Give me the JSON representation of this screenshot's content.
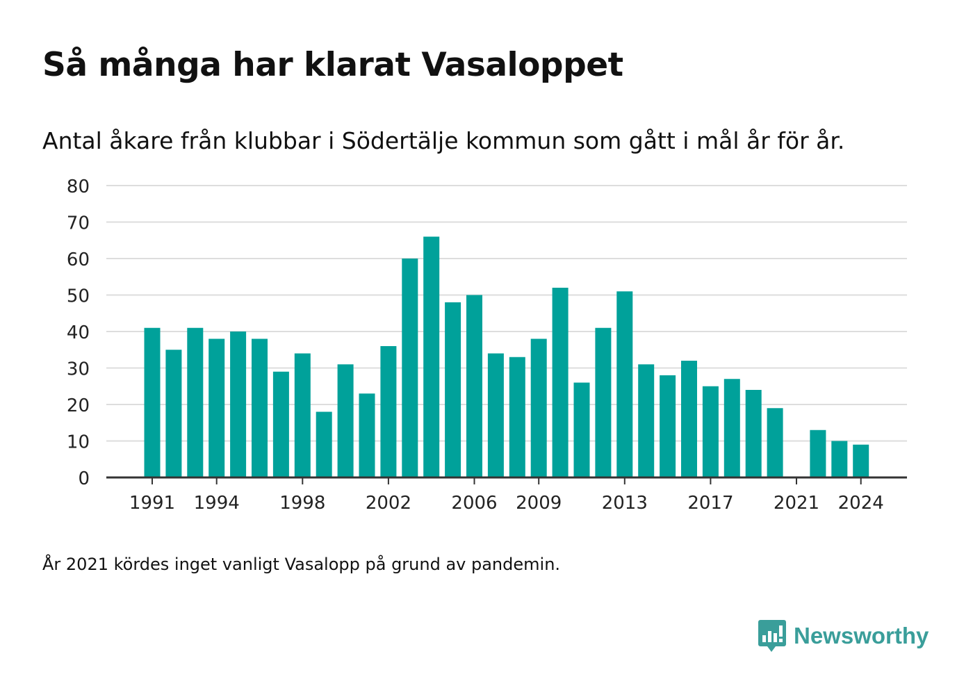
{
  "title": "Så många har klarat Vasaloppet",
  "subtitle": "Antal åkare från klubbar i Södertälje kommun som gått i mål år för år.",
  "note": "År 2021 kördes inget vanligt Vasalopp på grund av pandemin.",
  "brand": {
    "name": "Newsworthy",
    "icon": "bar-chart-speech-icon"
  },
  "colors": {
    "bar": "#00a19a",
    "grid": "#dddddd",
    "axis": "#333333",
    "brand": "#3a9e9a"
  },
  "chart_data": {
    "type": "bar",
    "title": "Så många har klarat Vasaloppet",
    "subtitle": "Antal åkare från klubbar i Södertälje kommun som gått i mål år för år.",
    "xlabel": "",
    "ylabel": "",
    "ylim": [
      0,
      80
    ],
    "yticks": [
      0,
      10,
      20,
      30,
      40,
      50,
      60,
      70,
      80
    ],
    "xticks": [
      1991,
      1994,
      1998,
      2002,
      2006,
      2009,
      2013,
      2017,
      2021,
      2024
    ],
    "grid": true,
    "categories": [
      1991,
      1992,
      1993,
      1994,
      1995,
      1996,
      1997,
      1998,
      1999,
      2000,
      2001,
      2002,
      2003,
      2004,
      2005,
      2006,
      2007,
      2008,
      2009,
      2010,
      2011,
      2012,
      2013,
      2014,
      2015,
      2016,
      2017,
      2018,
      2019,
      2020,
      2021,
      2022,
      2023,
      2024
    ],
    "values": [
      41,
      35,
      41,
      38,
      40,
      38,
      29,
      34,
      18,
      31,
      23,
      36,
      60,
      66,
      48,
      50,
      34,
      33,
      38,
      52,
      26,
      41,
      51,
      31,
      28,
      32,
      25,
      27,
      24,
      19,
      null,
      13,
      10,
      9
    ]
  }
}
